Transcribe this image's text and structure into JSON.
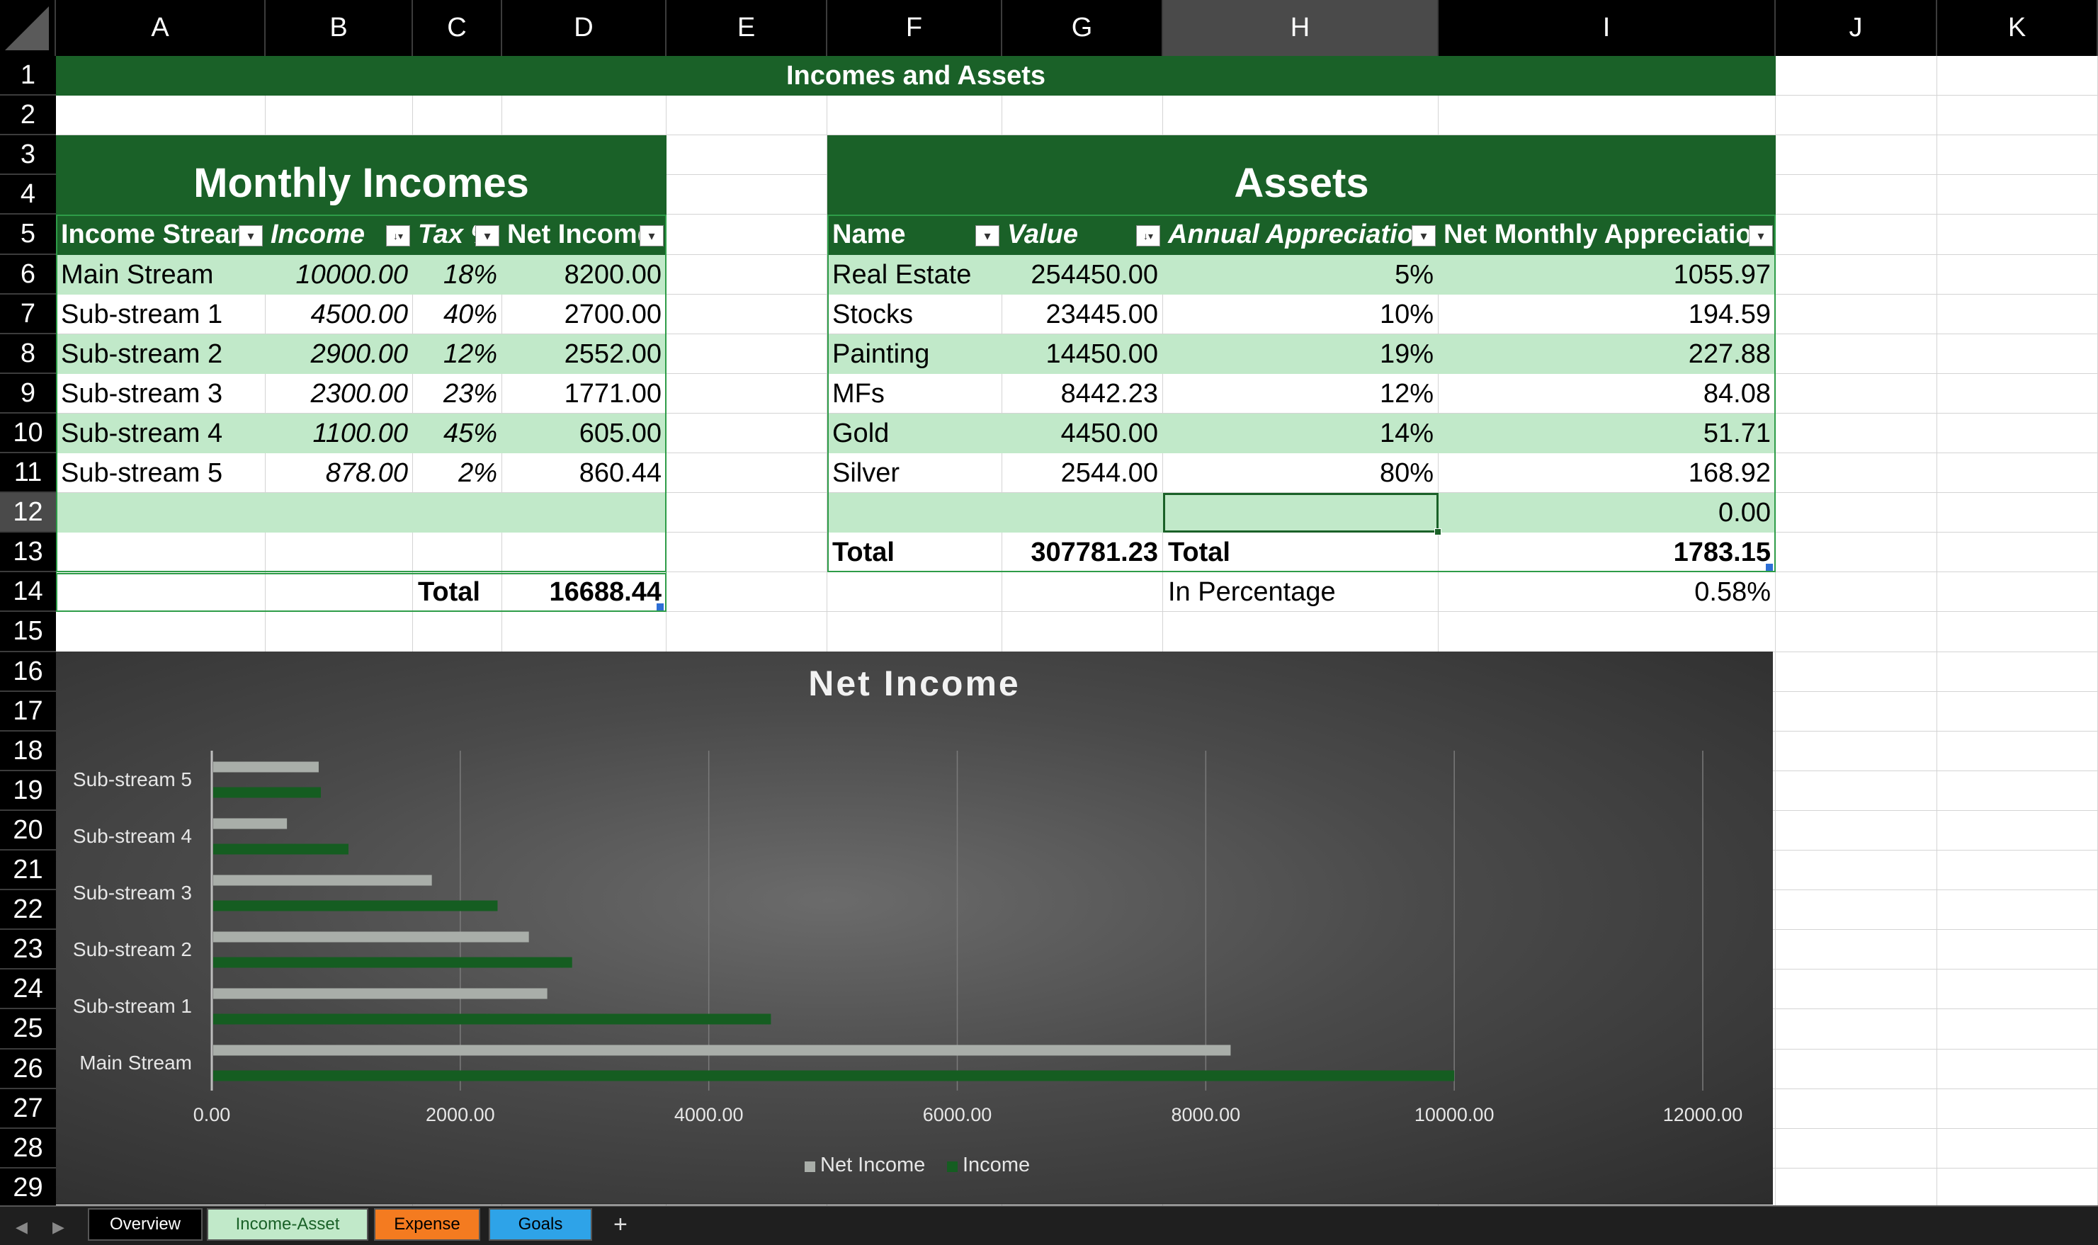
{
  "columns": [
    "A",
    "B",
    "C",
    "D",
    "E",
    "F",
    "G",
    "H",
    "I",
    "J",
    "K"
  ],
  "rows": [
    "1",
    "2",
    "3",
    "4",
    "5",
    "6",
    "7",
    "8",
    "9",
    "10",
    "11",
    "12",
    "13",
    "14",
    "15",
    "16",
    "17",
    "18",
    "19",
    "20",
    "21",
    "22",
    "23",
    "24",
    "25",
    "26",
    "27",
    "28",
    "29"
  ],
  "selected_col": "H",
  "selected_row": "12",
  "sheet_title": "Incomes and Assets",
  "incomes": {
    "title": "Monthly Incomes",
    "headers": [
      "Income Stream",
      "Income",
      "Tax %",
      "Net Income"
    ],
    "rows": [
      {
        "name": "Main Stream",
        "income": "10000.00",
        "tax": "18%",
        "net": "8200.00"
      },
      {
        "name": "Sub-stream 1",
        "income": "4500.00",
        "tax": "40%",
        "net": "2700.00"
      },
      {
        "name": "Sub-stream 2",
        "income": "2900.00",
        "tax": "12%",
        "net": "2552.00"
      },
      {
        "name": "Sub-stream 3",
        "income": "2300.00",
        "tax": "23%",
        "net": "1771.00"
      },
      {
        "name": "Sub-stream 4",
        "income": "1100.00",
        "tax": "45%",
        "net": "605.00"
      },
      {
        "name": "Sub-stream 5",
        "income": "878.00",
        "tax": "2%",
        "net": "860.44"
      }
    ],
    "total_label": "Total",
    "total_value": "16688.44"
  },
  "assets": {
    "title": "Assets",
    "headers": [
      "Name",
      "Value",
      "Annual Appreciation",
      "Net Monthly Appreciation"
    ],
    "rows": [
      {
        "name": "Real Estate",
        "value": "254450.00",
        "annual": "5%",
        "monthly": "1055.97"
      },
      {
        "name": "Stocks",
        "value": "23445.00",
        "annual": "10%",
        "monthly": "194.59"
      },
      {
        "name": "Painting",
        "value": "14450.00",
        "annual": "19%",
        "monthly": "227.88"
      },
      {
        "name": "MFs",
        "value": "8442.23",
        "annual": "12%",
        "monthly": "84.08"
      },
      {
        "name": "Gold",
        "value": "4450.00",
        "annual": "14%",
        "monthly": "51.71"
      },
      {
        "name": "Silver",
        "value": "2544.00",
        "annual": "80%",
        "monthly": "168.92"
      }
    ],
    "empty_row_monthly": "0.00",
    "total_label": "Total",
    "total_value": "307781.23",
    "total_label2": "Total",
    "total_monthly": "1783.15",
    "percentage_label": "In Percentage",
    "percentage_value": "0.58%"
  },
  "chart_data": {
    "type": "bar",
    "orientation": "horizontal",
    "title": "Net Income",
    "categories": [
      "Main Stream",
      "Sub-stream 1",
      "Sub-stream 2",
      "Sub-stream 3",
      "Sub-stream 4",
      "Sub-stream 5"
    ],
    "series": [
      {
        "name": "Net Income",
        "values": [
          8200,
          2700,
          2552,
          1771,
          605,
          860.44
        ],
        "color": "#a9aea9"
      },
      {
        "name": "Income",
        "values": [
          10000,
          4500,
          2900,
          2300,
          1100,
          878
        ],
        "color": "#155d21"
      }
    ],
    "xlim": [
      0,
      12000
    ],
    "xticks": [
      "0.00",
      "2000.00",
      "4000.00",
      "6000.00",
      "8000.00",
      "10000.00",
      "12000.00"
    ],
    "grid": true,
    "legend": "bottom"
  },
  "tabs": [
    {
      "label": "Overview",
      "bg": "#000000",
      "color": "#ffffff"
    },
    {
      "label": "Income-Asset",
      "bg": "#c1e9c9",
      "color": "#1a6128"
    },
    {
      "label": "Expense",
      "bg": "#f47b20",
      "color": "#000000"
    },
    {
      "label": "Goals",
      "bg": "#2ea3e8",
      "color": "#000000"
    }
  ],
  "add_tab": "+",
  "nav": {
    "prev": "◀",
    "next": "▶"
  },
  "colors": {
    "header_green": "#1a6128",
    "band_green": "#c1e9c9",
    "border_green": "#2e9c48"
  }
}
